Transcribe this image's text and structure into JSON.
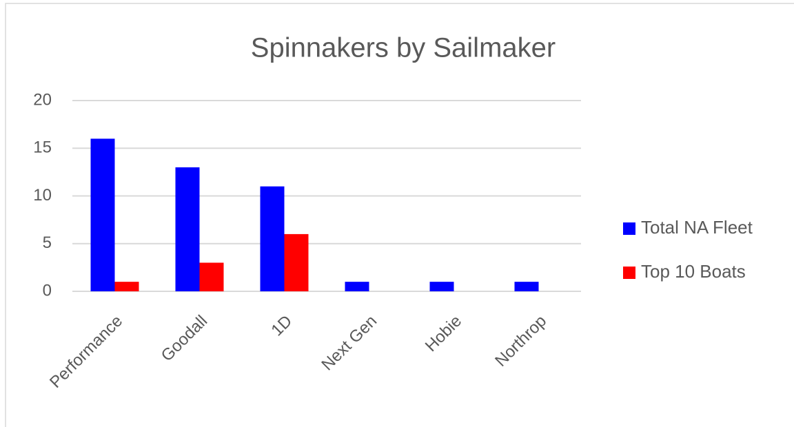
{
  "chart_data": {
    "type": "bar",
    "title": "Spinnakers by Sailmaker",
    "categories": [
      "Performance",
      "Goodall",
      "1D",
      "Next Gen",
      "Hobie",
      "Northrop"
    ],
    "series": [
      {
        "name": "Total NA Fleet",
        "color": "#0000ff",
        "values": [
          16,
          13,
          11,
          1,
          1,
          1
        ]
      },
      {
        "name": "Top 10 Boats",
        "color": "#ff0000",
        "values": [
          1,
          3,
          6,
          0,
          0,
          0
        ]
      }
    ],
    "ylim": [
      0,
      20
    ],
    "yticks": [
      0,
      5,
      10,
      15,
      20
    ],
    "grid": true,
    "legend": "right"
  }
}
